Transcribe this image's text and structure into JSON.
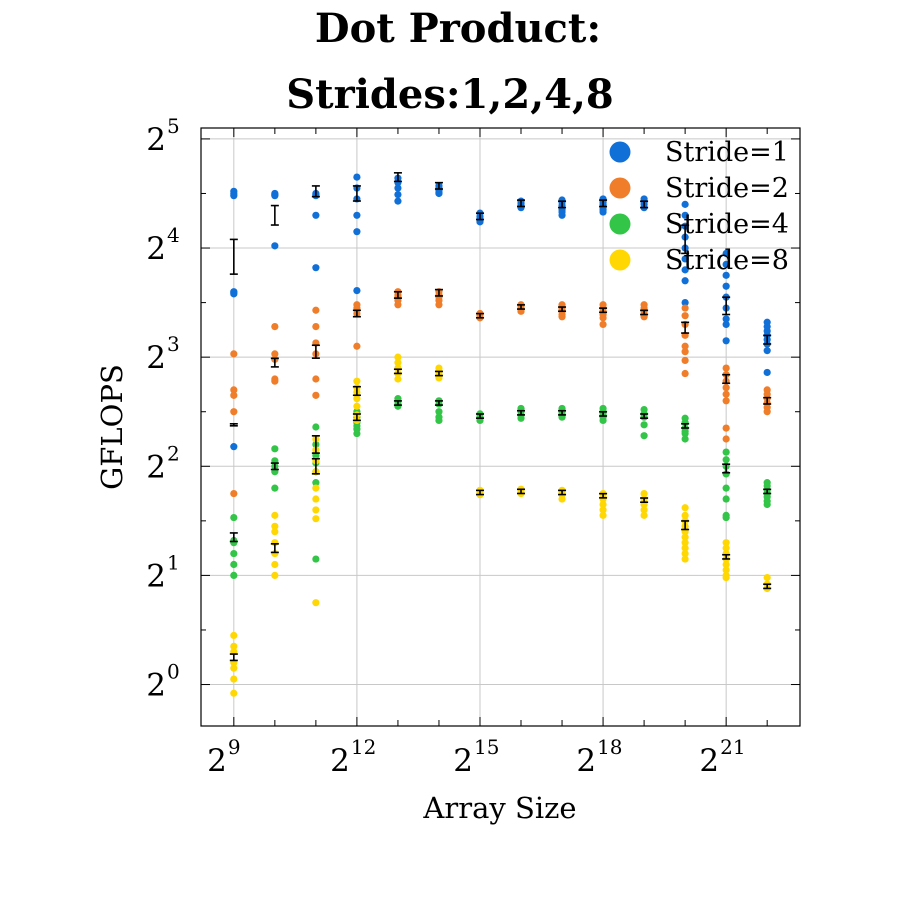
{
  "chart_data": {
    "type": "scatter",
    "title_lines": [
      "Dot Product:",
      "Strides:1,2,4,8"
    ],
    "xlabel": "Array Size",
    "ylabel": "GFLOPS",
    "x_scale": "log2",
    "y_scale": "log2",
    "x_ticks": [
      {
        "base": "2",
        "exp": "9",
        "value": 512
      },
      {
        "base": "2",
        "exp": "12",
        "value": 4096
      },
      {
        "base": "2",
        "exp": "15",
        "value": 32768
      },
      {
        "base": "2",
        "exp": "18",
        "value": 262144
      },
      {
        "base": "2",
        "exp": "21",
        "value": 2097152
      }
    ],
    "y_ticks": [
      {
        "base": "2",
        "exp": "0",
        "value": 1
      },
      {
        "base": "2",
        "exp": "1",
        "value": 2
      },
      {
        "base": "2",
        "exp": "2",
        "value": 4
      },
      {
        "base": "2",
        "exp": "3",
        "value": 8
      },
      {
        "base": "2",
        "exp": "4",
        "value": 16
      },
      {
        "base": "2",
        "exp": "5",
        "value": 32
      }
    ],
    "xlim_log2": [
      8.2,
      22.8
    ],
    "ylim_log2": [
      -0.38,
      5.1
    ],
    "grid": true,
    "legend_position": "top-right",
    "errorbar_color": "#000000",
    "series": [
      {
        "name": "Stride=1",
        "color": "#1170d8",
        "points": [
          [
            9,
            [
              4.52,
              4.5,
              4.48,
              3.6,
              3.58,
              3.59,
              2.18
            ]
          ],
          [
            10,
            [
              4.5,
              4.49,
              4.48,
              4.02
            ]
          ],
          [
            11,
            [
              4.5,
              4.49,
              4.48,
              4.3,
              3.82
            ]
          ],
          [
            12,
            [
              4.65,
              4.55,
              4.45,
              4.3,
              4.15,
              3.61
            ]
          ],
          [
            13,
            [
              4.64,
              4.6,
              4.55,
              4.49,
              4.43
            ]
          ],
          [
            14,
            [
              4.57,
              4.55,
              4.53,
              4.51,
              4.5
            ]
          ],
          [
            15,
            [
              4.32,
              4.29,
              4.27,
              4.24
            ]
          ],
          [
            16,
            [
              4.43,
              4.41,
              4.39,
              4.37
            ]
          ],
          [
            17,
            [
              4.44,
              4.42,
              4.39,
              4.35,
              4.33,
              4.3
            ]
          ],
          [
            18,
            [
              4.45,
              4.42,
              4.4,
              4.37,
              4.35,
              4.33
            ]
          ],
          [
            19,
            [
              4.45,
              4.42,
              4.4,
              4.37
            ]
          ],
          [
            20,
            [
              4.4,
              4.3,
              4.2,
              4.1,
              4.0,
              3.9,
              3.8,
              3.7,
              3.5
            ]
          ],
          [
            21,
            [
              3.95,
              3.85,
              3.75,
              3.65,
              3.55,
              3.45,
              3.35,
              3.3,
              3.15
            ]
          ],
          [
            22,
            [
              3.32,
              3.28,
              3.24,
              3.2,
              3.16,
              3.12,
              3.06,
              2.86
            ]
          ]
        ],
        "means": [
          [
            9,
            3.92,
            0.15
          ],
          [
            10,
            4.3,
            0.08
          ],
          [
            11,
            4.52,
            0.04
          ],
          [
            12,
            4.5,
            0.06
          ],
          [
            13,
            4.65,
            0.03
          ],
          [
            14,
            4.57,
            0.02
          ],
          [
            15,
            4.29,
            0.02
          ],
          [
            16,
            4.41,
            0.02
          ],
          [
            17,
            4.4,
            0.02
          ],
          [
            18,
            4.41,
            0.02
          ],
          [
            19,
            4.4,
            0.02
          ],
          [
            20,
            4.08,
            0.12
          ],
          [
            21,
            3.47,
            0.07
          ],
          [
            22,
            3.16,
            0.03
          ]
        ]
      },
      {
        "name": "Stride=2",
        "color": "#f07d2a",
        "points": [
          [
            9,
            [
              3.03,
              2.7,
              2.65,
              2.5,
              1.75
            ]
          ],
          [
            10,
            [
              3.28,
              3.03,
              2.98,
              2.8,
              2.78
            ]
          ],
          [
            11,
            [
              3.43,
              3.28,
              3.13,
              3.03,
              2.8,
              2.65
            ]
          ],
          [
            12,
            [
              3.48,
              3.45,
              3.4,
              3.1
            ]
          ],
          [
            13,
            [
              3.6,
              3.57,
              3.55,
              3.52,
              3.48
            ]
          ],
          [
            14,
            [
              3.6,
              3.57,
              3.55,
              3.52,
              3.48
            ]
          ],
          [
            15,
            [
              3.4,
              3.38,
              3.36
            ]
          ],
          [
            16,
            [
              3.48,
              3.46,
              3.44,
              3.42
            ]
          ],
          [
            17,
            [
              3.48,
              3.46,
              3.44,
              3.42,
              3.39,
              3.37
            ]
          ],
          [
            18,
            [
              3.48,
              3.45,
              3.42,
              3.39,
              3.36,
              3.3
            ]
          ],
          [
            19,
            [
              3.48,
              3.45,
              3.42,
              3.39,
              3.37
            ]
          ],
          [
            20,
            [
              3.45,
              3.38,
              3.3,
              3.2,
              3.1,
              3.05,
              2.97,
              2.85
            ]
          ],
          [
            21,
            [
              2.9,
              2.84,
              2.78,
              2.72,
              2.66,
              2.6,
              2.35,
              2.25
            ]
          ],
          [
            22,
            [
              2.7,
              2.66,
              2.62,
              2.58,
              2.54,
              2.5
            ]
          ]
        ],
        "means": [
          [
            9,
            2.38,
            0
          ],
          [
            10,
            2.95,
            0.03
          ],
          [
            11,
            3.05,
            0.05
          ],
          [
            12,
            3.4,
            0.02
          ],
          [
            13,
            3.57,
            0.02
          ],
          [
            14,
            3.59,
            0.02
          ],
          [
            15,
            3.38,
            0.01
          ],
          [
            16,
            3.46,
            0.01
          ],
          [
            17,
            3.44,
            0.01
          ],
          [
            18,
            3.43,
            0.01
          ],
          [
            19,
            3.41,
            0.01
          ],
          [
            20,
            3.27,
            0.04
          ],
          [
            21,
            2.8,
            0.03
          ],
          [
            22,
            2.6,
            0.02
          ]
        ]
      },
      {
        "name": "Stride=4",
        "color": "#33c548",
        "points": [
          [
            9,
            [
              1.53,
              1.32,
              1.3,
              1.2,
              1.1,
              1.0
            ]
          ],
          [
            10,
            [
              2.16,
              2.05,
              2.0,
              1.95,
              1.8
            ]
          ],
          [
            11,
            [
              2.36,
              2.2,
              2.1,
              2.03,
              1.95,
              1.85,
              1.15
            ]
          ],
          [
            12,
            [
              2.5,
              2.45,
              2.4,
              2.37,
              2.34,
              2.3
            ]
          ],
          [
            13,
            [
              2.62,
              2.58,
              2.55
            ]
          ],
          [
            14,
            [
              2.6,
              2.57,
              2.5,
              2.45,
              2.42
            ]
          ],
          [
            15,
            [
              2.48,
              2.45,
              2.42
            ]
          ],
          [
            16,
            [
              2.53,
              2.5,
              2.47,
              2.44
            ]
          ],
          [
            17,
            [
              2.53,
              2.5,
              2.48,
              2.45
            ]
          ],
          [
            18,
            [
              2.53,
              2.5,
              2.48,
              2.45,
              2.42
            ]
          ],
          [
            19,
            [
              2.52,
              2.48,
              2.45,
              2.38,
              2.28
            ]
          ],
          [
            20,
            [
              2.44,
              2.4,
              2.35,
              2.32,
              2.3,
              2.25
            ]
          ],
          [
            21,
            [
              2.13,
              2.06,
              2.0,
              1.93,
              1.8,
              1.7,
              1.55,
              1.53
            ]
          ],
          [
            22,
            [
              1.85,
              1.82,
              1.78,
              1.75,
              1.72,
              1.68,
              1.65
            ]
          ]
        ],
        "means": [
          [
            9,
            1.35,
            0.03
          ],
          [
            10,
            2.0,
            0.02
          ],
          [
            11,
            2.0,
            0.06
          ],
          [
            12,
            2.45,
            0.02
          ],
          [
            13,
            2.58,
            0.01
          ],
          [
            14,
            2.58,
            0.01
          ],
          [
            15,
            2.46,
            0.01
          ],
          [
            16,
            2.49,
            0.01
          ],
          [
            17,
            2.49,
            0.01
          ],
          [
            18,
            2.48,
            0.01
          ],
          [
            19,
            2.46,
            0.01
          ],
          [
            20,
            2.37,
            0.01
          ],
          [
            21,
            1.98,
            0.03
          ],
          [
            22,
            1.77,
            0.01
          ]
        ]
      },
      {
        "name": "Stride=8",
        "color": "#ffd803",
        "points": [
          [
            9,
            [
              0.45,
              0.35,
              0.3,
              0.2,
              0.15,
              0.05,
              -0.08
            ]
          ],
          [
            10,
            [
              1.55,
              1.45,
              1.4,
              1.3,
              1.2,
              1.1,
              1.0
            ]
          ],
          [
            11,
            [
              2.25,
              2.15,
              2.05,
              1.95,
              1.8,
              1.7,
              1.6,
              1.52,
              0.75
            ]
          ],
          [
            12,
            [
              2.78,
              2.72,
              2.68,
              2.62,
              2.55,
              2.47,
              2.42
            ]
          ],
          [
            13,
            [
              3.0,
              2.95,
              2.9,
              2.85,
              2.8
            ]
          ],
          [
            14,
            [
              2.9,
              2.87,
              2.84,
              2.81
            ]
          ],
          [
            15,
            [
              1.78,
              1.76,
              1.74
            ]
          ],
          [
            16,
            [
              1.79,
              1.77,
              1.75
            ]
          ],
          [
            17,
            [
              1.78,
              1.76,
              1.74,
              1.7
            ]
          ],
          [
            18,
            [
              1.75,
              1.72,
              1.7,
              1.65,
              1.6,
              1.55
            ]
          ],
          [
            19,
            [
              1.75,
              1.7,
              1.65,
              1.6,
              1.55
            ]
          ],
          [
            20,
            [
              1.62,
              1.55,
              1.5,
              1.45,
              1.4,
              1.35,
              1.3,
              1.25,
              1.2,
              1.15
            ]
          ],
          [
            21,
            [
              1.3,
              1.25,
              1.2,
              1.15,
              1.1,
              1.05,
              1.0,
              0.98
            ]
          ],
          [
            22,
            [
              0.98,
              0.92,
              0.88
            ]
          ]
        ],
        "means": [
          [
            9,
            0.25,
            0.02
          ],
          [
            10,
            1.25,
            0.03
          ],
          [
            11,
            2.2,
            0.07
          ],
          [
            12,
            2.69,
            0.03
          ],
          [
            13,
            2.87,
            0.01
          ],
          [
            14,
            2.85,
            0.01
          ],
          [
            15,
            1.76,
            0.01
          ],
          [
            16,
            1.77,
            0.01
          ],
          [
            17,
            1.76,
            0.01
          ],
          [
            18,
            1.73,
            0.01
          ],
          [
            19,
            1.69,
            0.01
          ],
          [
            20,
            1.46,
            0.03
          ],
          [
            21,
            1.17,
            0.01
          ],
          [
            22,
            0.9,
            0.01
          ]
        ]
      }
    ]
  }
}
